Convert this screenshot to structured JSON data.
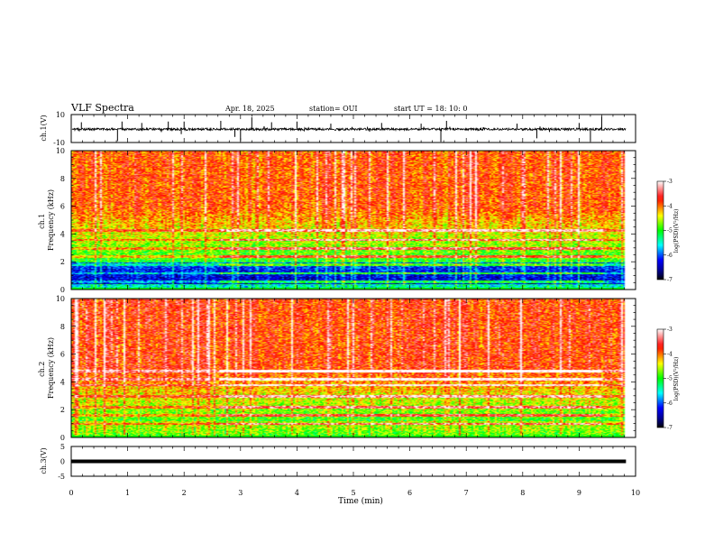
{
  "header": {
    "title": "VLF Spectra",
    "date": "Apr. 18, 2025",
    "station": "station= OUI",
    "start": "start  UT  =   18: 10: 0"
  },
  "colorbar": {
    "label": "log(PSD)(V²/Hz)",
    "ticks": [
      "-3",
      "-4",
      "-5",
      "-6",
      "-7"
    ],
    "colors": [
      "#ffffff",
      "#ff0000",
      "#ffff00",
      "#00ff00",
      "#00ffff",
      "#0000ff",
      "#000080",
      "#000000"
    ]
  },
  "chart_data": [
    {
      "type": "line",
      "name": "ch1-waveform",
      "ylabel": "ch.1(V)",
      "ylim": [
        -10,
        10
      ],
      "yticks": [
        "10",
        "-10"
      ],
      "xlim": [
        0,
        10
      ],
      "baseline": -0.5,
      "noise_amp": 0.8,
      "spikes": [
        {
          "t": 0.18,
          "v": 4.5
        },
        {
          "t": 0.82,
          "v": -9.0
        },
        {
          "t": 0.9,
          "v": 5.0
        },
        {
          "t": 1.25,
          "v": 4.0
        },
        {
          "t": 1.72,
          "v": 5.0
        },
        {
          "t": 1.95,
          "v": -4.0
        },
        {
          "t": 2.0,
          "v": 5.0
        },
        {
          "t": 2.65,
          "v": 5.5
        },
        {
          "t": 2.9,
          "v": -6.0
        },
        {
          "t": 3.0,
          "v": -9.0
        },
        {
          "t": 3.2,
          "v": 8.0
        },
        {
          "t": 3.55,
          "v": 4.5
        },
        {
          "t": 4.0,
          "v": 5.0
        },
        {
          "t": 4.6,
          "v": 3.5
        },
        {
          "t": 5.5,
          "v": 4.0
        },
        {
          "t": 6.2,
          "v": 3.5
        },
        {
          "t": 6.55,
          "v": -9.5
        },
        {
          "t": 6.65,
          "v": 5.5
        },
        {
          "t": 7.9,
          "v": 3.5
        },
        {
          "t": 8.25,
          "v": -7.0
        },
        {
          "t": 9.0,
          "v": 4.0
        },
        {
          "t": 9.2,
          "v": -9.0
        },
        {
          "t": 9.4,
          "v": 8.5
        }
      ]
    },
    {
      "type": "heatmap",
      "name": "ch1-spectrogram",
      "ylabel": "ch.1\nFrequency (kHz)",
      "ylim": [
        0,
        10
      ],
      "yticks": [
        "0",
        "2",
        "4",
        "6",
        "8",
        "10"
      ],
      "xlim": [
        0,
        10
      ],
      "data_end_min": 9.83,
      "zlim": [
        -7,
        -3
      ],
      "tones_khz": [
        0.6,
        1.2,
        1.8,
        2.4,
        3.0,
        3.6,
        4.3
      ]
    },
    {
      "type": "heatmap",
      "name": "ch2-spectrogram",
      "ylabel": "ch.2\nFrequency (kHz)",
      "ylim": [
        0,
        10
      ],
      "yticks": [
        "0",
        "2",
        "4",
        "6",
        "8",
        "10"
      ],
      "xlim": [
        0,
        10
      ],
      "data_end_min": 9.83,
      "zlim": [
        -7,
        -3
      ],
      "tones_khz": [
        1.0,
        1.6,
        2.2,
        3.0,
        3.8,
        4.2,
        4.8
      ]
    },
    {
      "type": "line",
      "name": "ch3-waveform",
      "ylabel": "ch.3(V)",
      "ylim": [
        -5,
        5
      ],
      "yticks": [
        "5",
        "0",
        "-5"
      ],
      "xlim": [
        0,
        10
      ],
      "constant_value": 0.0
    }
  ],
  "xaxis": {
    "label": "Time (min)",
    "ticks": [
      "0",
      "1",
      "2",
      "3",
      "4",
      "5",
      "6",
      "7",
      "8",
      "9",
      "10"
    ]
  }
}
